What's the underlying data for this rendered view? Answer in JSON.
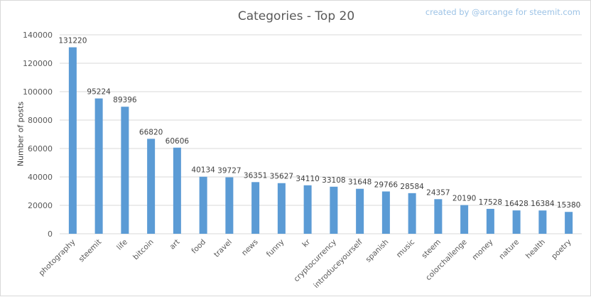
{
  "chart_data": {
    "type": "bar",
    "title": "Categories - Top 20",
    "credit": "created by @arcange for steemit.com",
    "xlabel": "",
    "ylabel": "Number of posts",
    "ylim": [
      0,
      140000
    ],
    "yticks": [
      0,
      20000,
      40000,
      60000,
      80000,
      100000,
      120000,
      140000
    ],
    "grid": true,
    "legend": "none",
    "bar_color": "#5b9bd5",
    "categories": [
      "photography",
      "steemit",
      "life",
      "bitcoin",
      "art",
      "food",
      "travel",
      "news",
      "funny",
      "kr",
      "cryptocurrency",
      "introduceyourself",
      "spanish",
      "music",
      "steem",
      "colorchallenge",
      "money",
      "nature",
      "health",
      "poetry"
    ],
    "values": [
      131220,
      95224,
      89396,
      66820,
      60606,
      40134,
      39727,
      36351,
      35627,
      34110,
      33108,
      31648,
      29766,
      28584,
      24357,
      20190,
      17528,
      16428,
      16384,
      15380
    ]
  }
}
